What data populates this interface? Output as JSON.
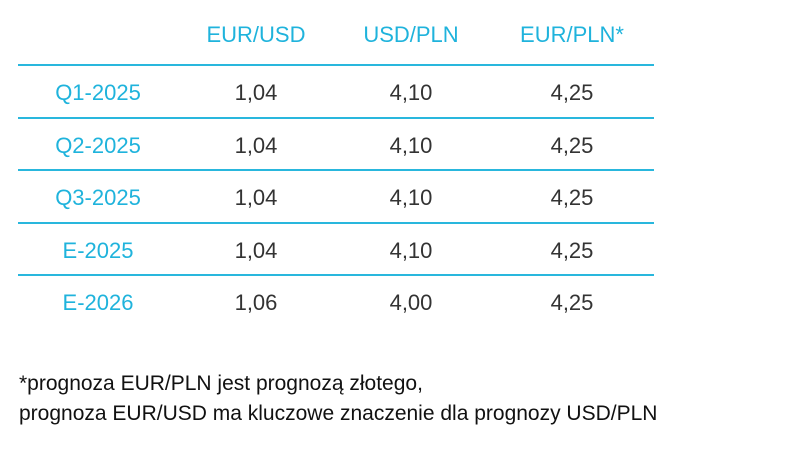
{
  "table": {
    "headers": [
      "",
      "EUR/USD",
      "USD/PLN",
      "EUR/PLN*"
    ],
    "rows": [
      {
        "label": "Q1-2025",
        "values": [
          "1,04",
          "4,10",
          "4,25"
        ]
      },
      {
        "label": "Q2-2025",
        "values": [
          "1,04",
          "4,10",
          "4,25"
        ]
      },
      {
        "label": "Q3-2025",
        "values": [
          "1,04",
          "4,10",
          "4,25"
        ]
      },
      {
        "label": "E-2025",
        "values": [
          "1,04",
          "4,10",
          "4,25"
        ]
      },
      {
        "label": "E-2026",
        "values": [
          "1,06",
          "4,00",
          "4,25"
        ]
      }
    ]
  },
  "footnote": {
    "line1": "*prognoza EUR/PLN jest prognozą złotego,",
    "line2": "prognoza EUR/USD ma kluczowe znaczenie dla prognozy USD/PLN"
  },
  "colors": {
    "accent": "#1fb3dc",
    "rule": "#29b7dd",
    "value_text": "#333333"
  }
}
